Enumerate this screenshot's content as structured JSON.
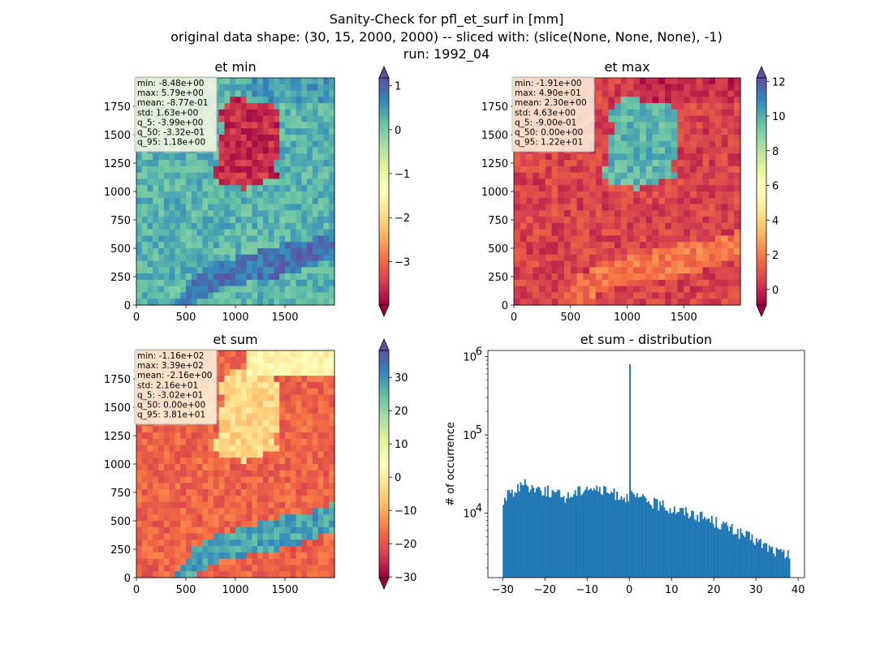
{
  "figure": {
    "title_lines": [
      "Sanity-Check for pfl_et_surf in [mm]",
      "original data shape: (30, 15, 2000, 2000) -- sliced with: (slice(None, None, None), -1)",
      "run: 1992_04"
    ]
  },
  "colors": {
    "hist_bar": "#1f77b4",
    "colormap": "Spectral",
    "colormap_stops": [
      "#9e0142",
      "#d53e4f",
      "#f46d43",
      "#fdae61",
      "#fee08b",
      "#ffffbf",
      "#e6f598",
      "#abdda4",
      "#66c2a5",
      "#3288bd",
      "#5e4fa2"
    ]
  },
  "chart_data": [
    {
      "type": "heatmap",
      "title": "et min",
      "xlim": [
        0,
        2000
      ],
      "ylim": [
        0,
        2000
      ],
      "x_ticks": [
        "0",
        "500",
        "1000",
        "1500"
      ],
      "y_ticks": [
        "0",
        "250",
        "500",
        "750",
        "1000",
        "1250",
        "1500",
        "1750"
      ],
      "colorbar": {
        "range": [
          -3.99,
          1.18
        ],
        "ticks": [
          "−3",
          "−2",
          "−1",
          "0",
          "1"
        ],
        "tick_values": [
          -3,
          -2,
          -1,
          0,
          1
        ],
        "extend": "both"
      },
      "stats": [
        "min: -8.48e+00",
        "max: 5.79e+00",
        "mean: -8.77e-01",
        "std: 1.63e+00",
        "q_5: -3.99e+00",
        "q_50: -3.32e-01",
        "q_95: 1.18e+00"
      ],
      "regions": {
        "land": 0.25,
        "germany": -3.6,
        "south": 0.85,
        "north_sea": 0.5
      }
    },
    {
      "type": "heatmap",
      "title": "et max",
      "xlim": [
        0,
        2000
      ],
      "ylim": [
        0,
        2000
      ],
      "x_ticks": [
        "0",
        "500",
        "1000",
        "1500"
      ],
      "y_ticks": [
        "0",
        "250",
        "500",
        "750",
        "1000",
        "1250",
        "1500",
        "1750"
      ],
      "colorbar": {
        "range": [
          -0.9,
          12.2
        ],
        "ticks": [
          "0",
          "2",
          "4",
          "6",
          "8",
          "10",
          "12"
        ],
        "tick_values": [
          0,
          2,
          4,
          6,
          8,
          10,
          12
        ],
        "extend": "both"
      },
      "stats": [
        "min: -1.91e+00",
        "max: 4.90e+01",
        "mean: 2.30e+00",
        "std: 4.63e+00",
        "q_5: -9.00e-01",
        "q_50: 0.00e+00",
        "q_95: 1.22e+01"
      ],
      "regions": {
        "land": 0.6,
        "germany": 9.8,
        "south": 1.8,
        "north_sea": 0.0
      }
    },
    {
      "type": "heatmap",
      "title": "et sum",
      "xlim": [
        0,
        2000
      ],
      "ylim": [
        0,
        2000
      ],
      "x_ticks": [
        "0",
        "500",
        "1000",
        "1500"
      ],
      "y_ticks": [
        "0",
        "250",
        "500",
        "750",
        "1000",
        "1250",
        "1500",
        "1750"
      ],
      "colorbar": {
        "range": [
          -30.2,
          38.1
        ],
        "ticks": [
          "−30",
          "−20",
          "−10",
          "0",
          "10",
          "20",
          "30"
        ],
        "tick_values": [
          -30,
          -20,
          -10,
          0,
          10,
          20,
          30
        ],
        "extend": "both"
      },
      "stats": [
        "min: -1.16e+02",
        "max: 3.39e+02",
        "mean: -2.16e+00",
        "std: 2.16e+01",
        "q_5: -3.02e+01",
        "q_50: 0.00e+00",
        "q_95: 3.81e+01"
      ],
      "regions": {
        "land": -18,
        "germany": -4,
        "south": 28,
        "north_sea": 2
      }
    },
    {
      "type": "bar",
      "title": "et sum - distribution",
      "ylabel": "# of occurrence",
      "x_ticks": [
        -30,
        -20,
        -10,
        0,
        10,
        20,
        30,
        40
      ],
      "x_tick_labels": [
        "−30",
        "−20",
        "−10",
        "0",
        "10",
        "20",
        "30",
        "40"
      ],
      "xlim": [
        -33.5,
        41.5
      ],
      "y_scale": "log",
      "ylim": [
        1500,
        1200000
      ],
      "y_ticks": [
        10000,
        100000,
        1000000
      ],
      "y_tick_labels": [
        "10",
        "10",
        "10"
      ],
      "y_tick_exponents": [
        "4",
        "5",
        "6"
      ],
      "bins": {
        "start": -30,
        "end": 38.1,
        "count": 200
      },
      "envelope": [
        [
          -30,
          13000
        ],
        [
          -29,
          17000
        ],
        [
          -27,
          20000
        ],
        [
          -25,
          24000
        ],
        [
          -22,
          21000
        ],
        [
          -19,
          19000
        ],
        [
          -15,
          16000
        ],
        [
          -10,
          22000
        ],
        [
          -6,
          19000
        ],
        [
          -1,
          16500
        ],
        [
          1,
          16500
        ],
        [
          5,
          14000
        ],
        [
          10,
          11500
        ],
        [
          15,
          10000
        ],
        [
          20,
          8000
        ],
        [
          25,
          6000
        ],
        [
          30,
          4500
        ],
        [
          35,
          3200
        ],
        [
          38,
          2800
        ]
      ],
      "spike": {
        "x": 0,
        "value": 800000
      }
    }
  ]
}
